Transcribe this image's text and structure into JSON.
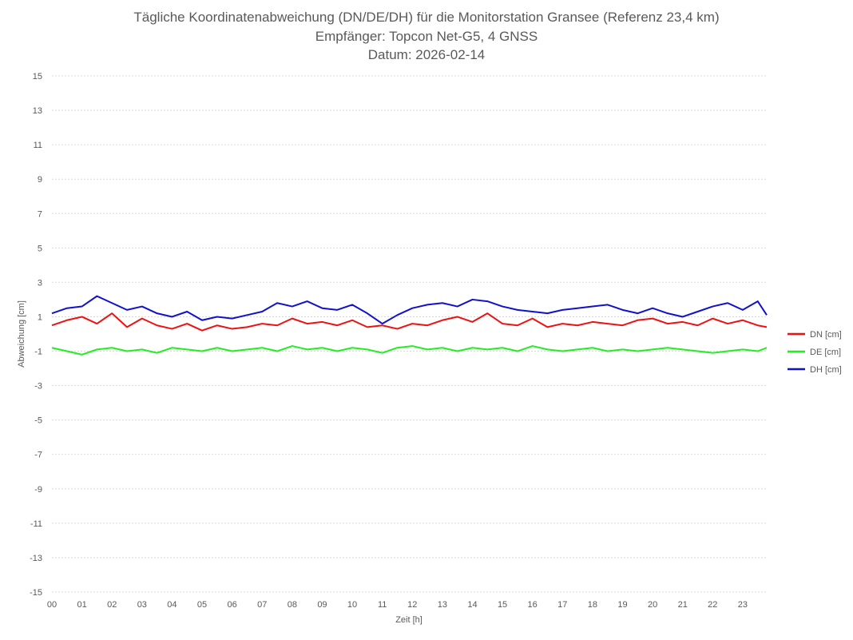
{
  "chart_data": {
    "type": "line",
    "title": [
      "Tägliche Koordinatenabweichung (DN/DE/DH) für die Monitorstation Gransee (Referenz 23,4 km)",
      "Empfänger: Topcon Net-G5, 4 GNSS",
      "Datum: 2026-02-14"
    ],
    "xlabel": "Zeit [h]",
    "ylabel": "Abweichung [cm]",
    "x_ticks": [
      "00",
      "01",
      "02",
      "03",
      "04",
      "05",
      "06",
      "07",
      "08",
      "09",
      "10",
      "11",
      "12",
      "13",
      "14",
      "15",
      "16",
      "17",
      "18",
      "19",
      "20",
      "21",
      "22",
      "23"
    ],
    "xlim": [
      0,
      23.8
    ],
    "ylim": [
      -15,
      15
    ],
    "y_ticks": [
      15,
      13,
      11,
      9,
      7,
      5,
      3,
      1,
      -1,
      -3,
      -5,
      -7,
      -9,
      -11,
      -13,
      -15
    ],
    "grid": "horizontal dotted",
    "legend_position": "right",
    "series": [
      {
        "name": "DN [cm]",
        "color": "#ee1111",
        "x": [
          0,
          0.5,
          1,
          1.5,
          2,
          2.5,
          3,
          3.5,
          4,
          4.5,
          5,
          5.5,
          6,
          6.5,
          7,
          7.5,
          8,
          8.5,
          9,
          9.5,
          10,
          10.5,
          11,
          11.5,
          12,
          12.5,
          13,
          13.5,
          14,
          14.5,
          15,
          15.5,
          16,
          16.5,
          17,
          17.5,
          18,
          18.5,
          19,
          19.5,
          20,
          20.5,
          21,
          21.5,
          22,
          22.5,
          23,
          23.5,
          23.8
        ],
        "values": [
          0.5,
          0.8,
          1.0,
          0.6,
          1.2,
          0.4,
          0.9,
          0.5,
          0.3,
          0.6,
          0.2,
          0.5,
          0.3,
          0.4,
          0.6,
          0.5,
          0.9,
          0.6,
          0.7,
          0.5,
          0.8,
          0.4,
          0.5,
          0.3,
          0.6,
          0.5,
          0.8,
          1.0,
          0.7,
          1.2,
          0.6,
          0.5,
          0.9,
          0.4,
          0.6,
          0.5,
          0.7,
          0.6,
          0.5,
          0.8,
          0.9,
          0.6,
          0.7,
          0.5,
          0.9,
          0.6,
          0.8,
          0.5,
          0.4
        ]
      },
      {
        "name": "DE [cm]",
        "color": "#22ee22",
        "x": [
          0,
          0.5,
          1,
          1.5,
          2,
          2.5,
          3,
          3.5,
          4,
          4.5,
          5,
          5.5,
          6,
          6.5,
          7,
          7.5,
          8,
          8.5,
          9,
          9.5,
          10,
          10.5,
          11,
          11.5,
          12,
          12.5,
          13,
          13.5,
          14,
          14.5,
          15,
          15.5,
          16,
          16.5,
          17,
          17.5,
          18,
          18.5,
          19,
          19.5,
          20,
          20.5,
          21,
          21.5,
          22,
          22.5,
          23,
          23.5,
          23.8
        ],
        "values": [
          -0.8,
          -1.0,
          -1.2,
          -0.9,
          -0.8,
          -1.0,
          -0.9,
          -1.1,
          -0.8,
          -0.9,
          -1.0,
          -0.8,
          -1.0,
          -0.9,
          -0.8,
          -1.0,
          -0.7,
          -0.9,
          -0.8,
          -1.0,
          -0.8,
          -0.9,
          -1.1,
          -0.8,
          -0.7,
          -0.9,
          -0.8,
          -1.0,
          -0.8,
          -0.9,
          -0.8,
          -1.0,
          -0.7,
          -0.9,
          -1.0,
          -0.9,
          -0.8,
          -1.0,
          -0.9,
          -1.0,
          -0.9,
          -0.8,
          -0.9,
          -1.0,
          -1.1,
          -1.0,
          -0.9,
          -1.0,
          -0.8
        ]
      },
      {
        "name": "DH [cm]",
        "color": "#1111cc",
        "x": [
          0,
          0.5,
          1,
          1.5,
          2,
          2.5,
          3,
          3.5,
          4,
          4.5,
          5,
          5.5,
          6,
          6.5,
          7,
          7.5,
          8,
          8.5,
          9,
          9.5,
          10,
          10.5,
          11,
          11.5,
          12,
          12.5,
          13,
          13.5,
          14,
          14.5,
          15,
          15.5,
          16,
          16.5,
          17,
          17.5,
          18,
          18.5,
          19,
          19.5,
          20,
          20.5,
          21,
          21.5,
          22,
          22.5,
          23,
          23.5,
          23.8
        ],
        "values": [
          1.2,
          1.5,
          1.6,
          2.2,
          1.8,
          1.4,
          1.6,
          1.2,
          1.0,
          1.3,
          0.8,
          1.0,
          0.9,
          1.1,
          1.3,
          1.8,
          1.6,
          1.9,
          1.5,
          1.4,
          1.7,
          1.2,
          0.6,
          1.1,
          1.5,
          1.7,
          1.8,
          1.6,
          2.0,
          1.9,
          1.6,
          1.4,
          1.3,
          1.2,
          1.4,
          1.5,
          1.6,
          1.7,
          1.4,
          1.2,
          1.5,
          1.2,
          1.0,
          1.3,
          1.6,
          1.8,
          1.4,
          1.9,
          1.1
        ]
      }
    ]
  }
}
